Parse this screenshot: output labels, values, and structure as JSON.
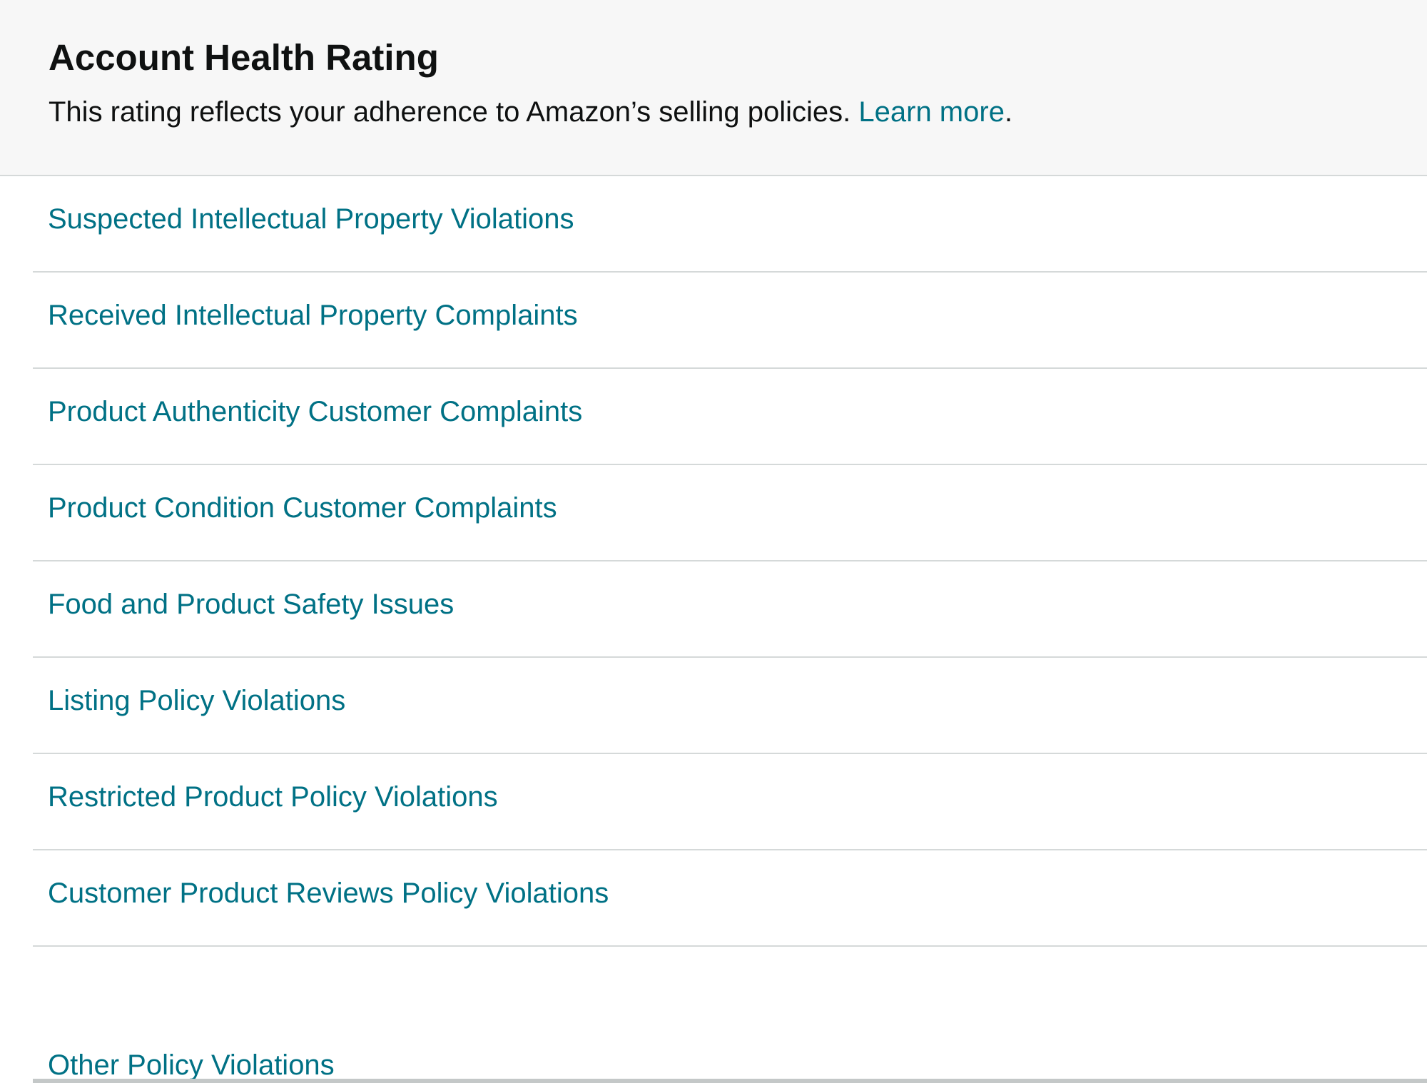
{
  "header": {
    "title": "Account Health Rating",
    "description": "This rating reflects your adherence to Amazon’s selling policies. ",
    "learn_more_label": "Learn more",
    "trailing_period": "."
  },
  "policy_items": [
    "Suspected Intellectual Property Violations",
    "Received Intellectual Property Complaints",
    "Product Authenticity Customer Complaints",
    "Product Condition Customer Complaints",
    "Food and Product Safety Issues",
    "Listing Policy Violations",
    "Restricted Product Policy Violations",
    "Customer Product Reviews Policy Violations",
    "Other Policy Violations"
  ],
  "colors": {
    "link": "#007185",
    "text": "#0f1111",
    "header_background": "#f7f7f7",
    "divider": "#d5d9d9"
  }
}
